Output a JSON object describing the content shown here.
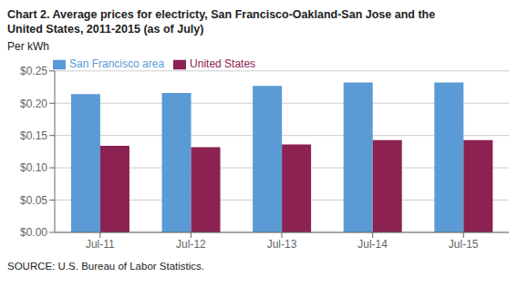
{
  "chart_data": {
    "type": "bar",
    "title": [
      "Chart 2. Average prices for electricty, San Francisco-Oakland-San Jose and the",
      "United States, 2011-2015  (as of July)"
    ],
    "ylabel": "Per kWh",
    "annotations": [
      "SOURCE: U.S. Bureau of Labor Statistics."
    ],
    "categories": [
      "Jul-11",
      "Jul-12",
      "Jul-13",
      "Jul-14",
      "Jul-15"
    ],
    "series": [
      {
        "name": "San Francisco area",
        "color": "#5B9BD5",
        "values": [
          0.214,
          0.216,
          0.227,
          0.232,
          0.232
        ]
      },
      {
        "name": "United States",
        "color": "#8B2252",
        "values": [
          0.134,
          0.132,
          0.136,
          0.143,
          0.143
        ]
      }
    ],
    "ylim": [
      0,
      0.25
    ],
    "yticks": [
      {
        "value": 0,
        "label": "$0.00"
      },
      {
        "value": 0.05,
        "label": "$0.05"
      },
      {
        "value": 0.1,
        "label": "$0.10"
      },
      {
        "value": 0.15,
        "label": "$0.15"
      },
      {
        "value": 0.2,
        "label": "$0.20"
      },
      {
        "value": 0.25,
        "label": "$0.25"
      }
    ],
    "grid": true,
    "legend": "upper left"
  }
}
